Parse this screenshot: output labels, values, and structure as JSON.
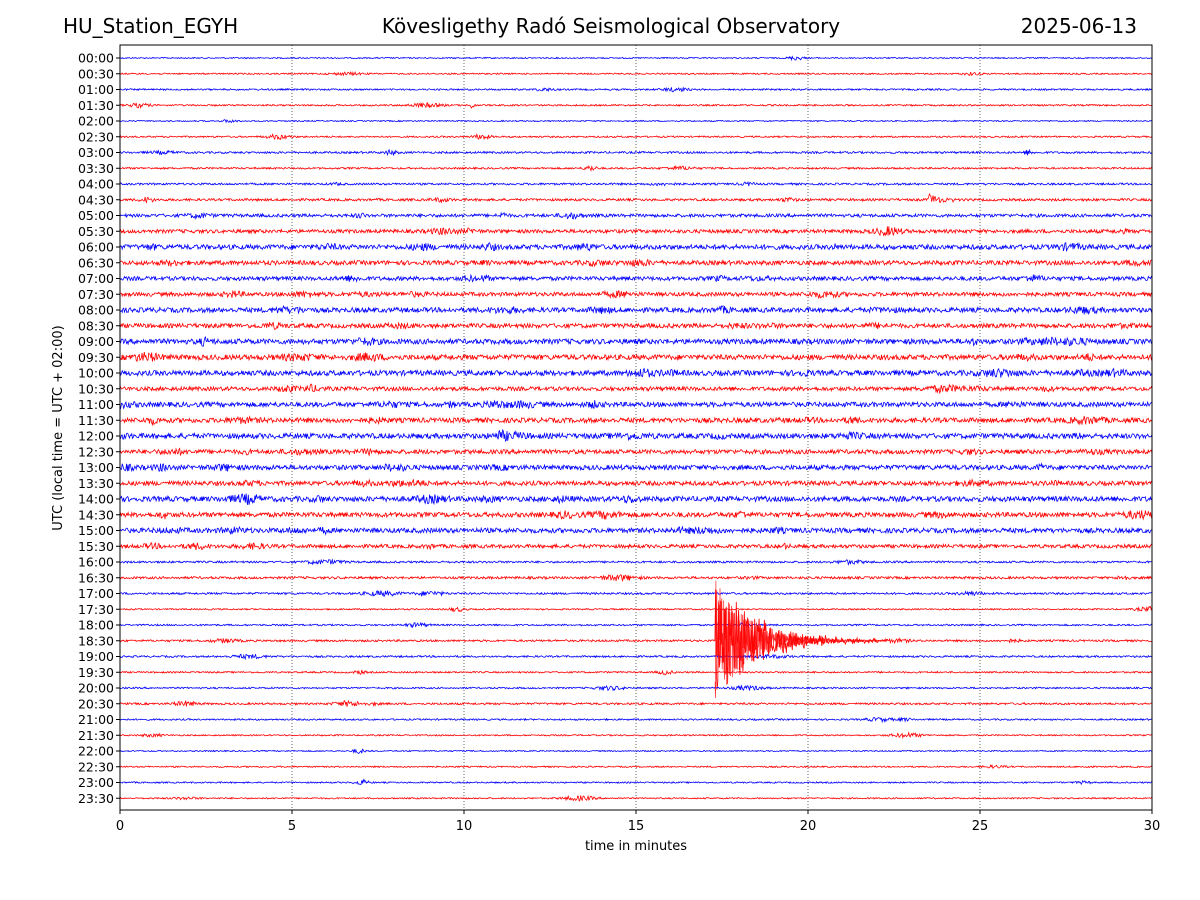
{
  "header": {
    "station": "HU_Station_EGYH",
    "observatory": "Kövesligethy Radó Seismological Observatory",
    "date": "2025-06-13"
  },
  "chart_data": {
    "type": "line",
    "title": "Kövesligethy Radó Seismological Observatory",
    "xlabel": "time in minutes",
    "ylabel": "UTC (local time = UTC + 02:00)",
    "xlim": [
      0,
      30
    ],
    "xticks": [
      0,
      5,
      10,
      15,
      20,
      25,
      30
    ],
    "x_grid": "dotted at 5, 10, 15, 20, 25",
    "row_labels": [
      "00:00",
      "00:30",
      "01:00",
      "01:30",
      "02:00",
      "02:30",
      "03:00",
      "03:30",
      "04:00",
      "04:30",
      "05:00",
      "05:30",
      "06:00",
      "06:30",
      "07:00",
      "07:30",
      "08:00",
      "08:30",
      "09:00",
      "09:30",
      "10:00",
      "10:30",
      "11:00",
      "11:30",
      "12:00",
      "12:30",
      "13:00",
      "13:30",
      "14:00",
      "14:30",
      "15:00",
      "15:30",
      "16:00",
      "16:30",
      "17:00",
      "17:30",
      "18:00",
      "18:30",
      "19:00",
      "19:30",
      "20:00",
      "20:30",
      "21:00",
      "21:30",
      "22:00",
      "22:30",
      "23:00",
      "23:30"
    ],
    "colors": [
      "#0000ff",
      "#ff0000"
    ],
    "noise_level": [
      0.6,
      0.7,
      0.8,
      0.8,
      0.6,
      0.8,
      1.0,
      0.9,
      1.0,
      1.2,
      1.6,
      1.8,
      2.4,
      2.2,
      2.0,
      2.0,
      2.4,
      2.2,
      2.6,
      2.6,
      2.6,
      2.0,
      2.4,
      2.4,
      2.6,
      2.2,
      2.4,
      2.2,
      2.6,
      2.4,
      2.4,
      1.8,
      1.0,
      1.2,
      1.0,
      0.7,
      0.8,
      1.0,
      0.9,
      0.8,
      0.8,
      1.0,
      0.8,
      0.7,
      0.6,
      0.7,
      0.7,
      0.7
    ],
    "events": [
      {
        "row": "01:30",
        "time_min": 10.2,
        "amplitude_rows": 0.3,
        "duration_min": 0.4
      },
      {
        "row": "04:30",
        "time_min": 23.5,
        "amplitude_rows": 0.45,
        "duration_min": 1.5
      },
      {
        "row": "18:30",
        "time_min": 17.3,
        "amplitude_rows": 4.0,
        "duration_min": 5.0
      }
    ]
  }
}
